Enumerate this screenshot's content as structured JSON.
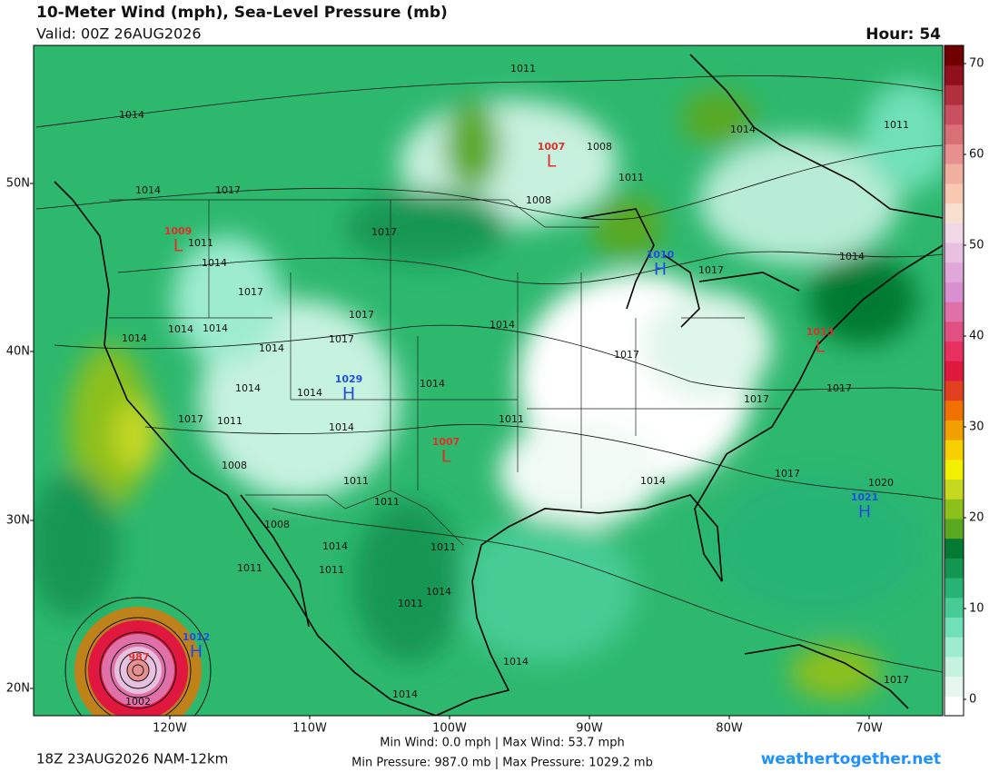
{
  "header": {
    "title": "10-Meter Wind (mph), Sea-Level Pressure (mb)",
    "valid": "Valid: 00Z 26AUG2026",
    "hour": "Hour: 54"
  },
  "map": {
    "lat_labels": [
      "50N",
      "40N",
      "30N",
      "20N"
    ],
    "lon_labels": [
      "120W",
      "110W",
      "100W",
      "90W",
      "80W",
      "70W"
    ],
    "isobar_labels": [
      "1011",
      "1014",
      "1008",
      "1011",
      "1014",
      "1011",
      "1014",
      "1017",
      "1008",
      "1011",
      "1014",
      "1017",
      "1017",
      "1014",
      "1017",
      "1017",
      "1014",
      "1014",
      "1014",
      "1014",
      "1017",
      "1014",
      "1017",
      "1014",
      "1014",
      "1014",
      "1017",
      "1017",
      "1017",
      "1011",
      "1014",
      "1011",
      "1008",
      "1011",
      "1014",
      "1017",
      "1020",
      "1011",
      "1008",
      "1014",
      "1011",
      "1011",
      "1011",
      "1014",
      "1011",
      "1014",
      "1002",
      "1014",
      "1017"
    ],
    "centers": [
      {
        "value": "1007",
        "letter": "L"
      },
      {
        "value": "1009",
        "letter": "L"
      },
      {
        "value": "1010",
        "letter": "H"
      },
      {
        "value": "1013",
        "letter": "L"
      },
      {
        "value": "1029",
        "letter": "H"
      },
      {
        "value": "1007",
        "letter": "L"
      },
      {
        "value": "1021",
        "letter": "H"
      },
      {
        "value": "1012",
        "letter": "H"
      },
      {
        "value": "987",
        "letter": "L"
      }
    ]
  },
  "colorbar": {
    "ticks": [
      0,
      10,
      20,
      30,
      40,
      50,
      60,
      70
    ],
    "colors": [
      "#ffffff",
      "#e6f7ef",
      "#c6f2e0",
      "#9eecd0",
      "#70e0b8",
      "#46cc94",
      "#26b474",
      "#129652",
      "#037a33",
      "#5aa820",
      "#8cc01a",
      "#c6d820",
      "#f0f000",
      "#f8d000",
      "#f0a000",
      "#f07000",
      "#e04020",
      "#e01840",
      "#e83060",
      "#e05080",
      "#e070a8",
      "#d890d0",
      "#e0a8d8",
      "#e8c0e0",
      "#f0d8e8",
      "#f8e0d0",
      "#f8c8b0",
      "#f0b0a0",
      "#e89090",
      "#d87078",
      "#c85060",
      "#b03040",
      "#901020",
      "#700000"
    ]
  },
  "footer": {
    "run": "18Z 23AUG2026 NAM-12km",
    "wind": "Min Wind:  0.0 mph | Max Wind: 53.7 mph",
    "pressure": "Min Pressure: 987.0 mb | Max Pressure: 1029.2 mb",
    "site": "weathertogether.net"
  }
}
